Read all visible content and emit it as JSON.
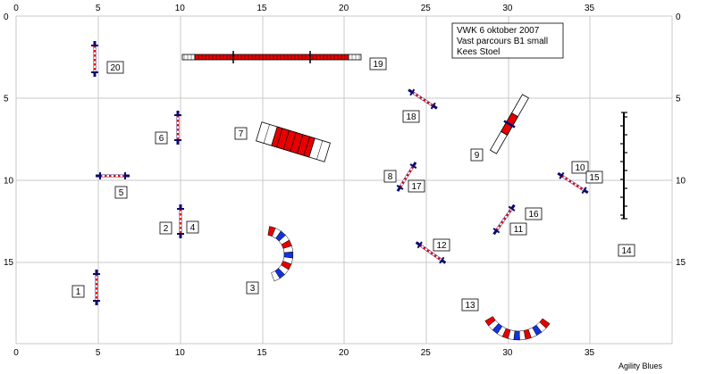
{
  "course": {
    "info_lines": [
      "VWK 6 oktober 2007",
      "Vast parcours B1 small",
      "Kees Stoel"
    ],
    "credit": "Agility Blues",
    "x_ticks": [
      0,
      5,
      10,
      15,
      20,
      25,
      30,
      35
    ],
    "y_ticks": [
      0,
      5,
      10,
      15
    ],
    "colors": {
      "grid": "#c8c8c8",
      "bar": "#0a0a6e",
      "pole_red": "#e60000",
      "tunnel_blue": "#1432dc",
      "ink": "#000000"
    },
    "obstacles": [
      {
        "label": "1",
        "type": "jump"
      },
      {
        "label": "2",
        "type": "jump"
      },
      {
        "label": "3",
        "type": "tunnel"
      },
      {
        "label": "4",
        "type": "jump"
      },
      {
        "label": "5",
        "type": "jump"
      },
      {
        "label": "6",
        "type": "jump"
      },
      {
        "label": "7",
        "type": "tunnel"
      },
      {
        "label": "8",
        "type": "jump"
      },
      {
        "label": "9",
        "type": "seesaw"
      },
      {
        "label": "10",
        "type": "jump"
      },
      {
        "label": "11",
        "type": "jump"
      },
      {
        "label": "12",
        "type": "jump"
      },
      {
        "label": "13",
        "type": "tunnel"
      },
      {
        "label": "14",
        "type": "weave"
      },
      {
        "label": "15",
        "type": "jump"
      },
      {
        "label": "16",
        "type": "jump"
      },
      {
        "label": "17",
        "type": "jump"
      },
      {
        "label": "18",
        "type": "jump"
      },
      {
        "label": "19",
        "type": "dogwalk"
      },
      {
        "label": "20",
        "type": "jump"
      }
    ]
  }
}
